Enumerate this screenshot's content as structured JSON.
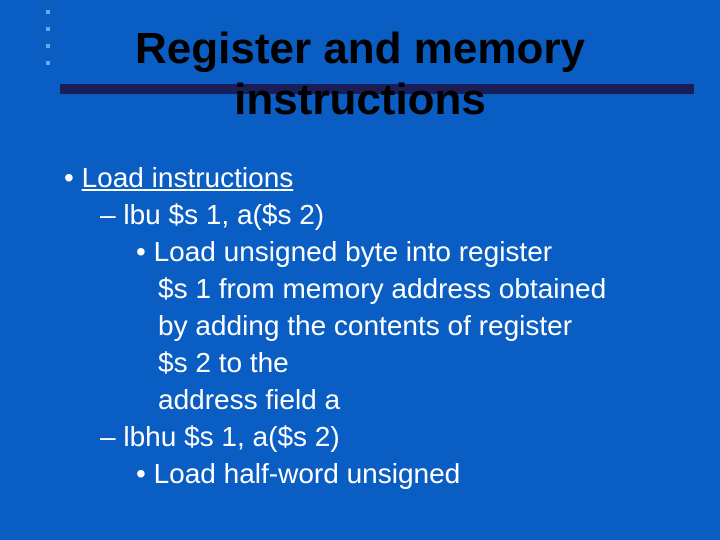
{
  "slide": {
    "background_color": "#0a5dc2",
    "title_bar_color": "#1a1e58",
    "text_color": "#ffffff",
    "title_color": "#000000",
    "title_line1": "Register and memory",
    "title_line2": "instructions",
    "bullets": {
      "lvl1_heading": "Load instructions",
      "item1": {
        "syntax": "lbu $s 1, a($s 2)",
        "desc_l1": "Load unsigned byte into register",
        "desc_l2": "$s 1 from memory address obtained",
        "desc_l3": "by adding the contents of register",
        "desc_l4": "$s 2 to the",
        "desc_l5": "address field a"
      },
      "item2": {
        "syntax": "lbhu $s 1, a($s 2)",
        "desc_l1": "Load half-word unsigned"
      }
    }
  }
}
